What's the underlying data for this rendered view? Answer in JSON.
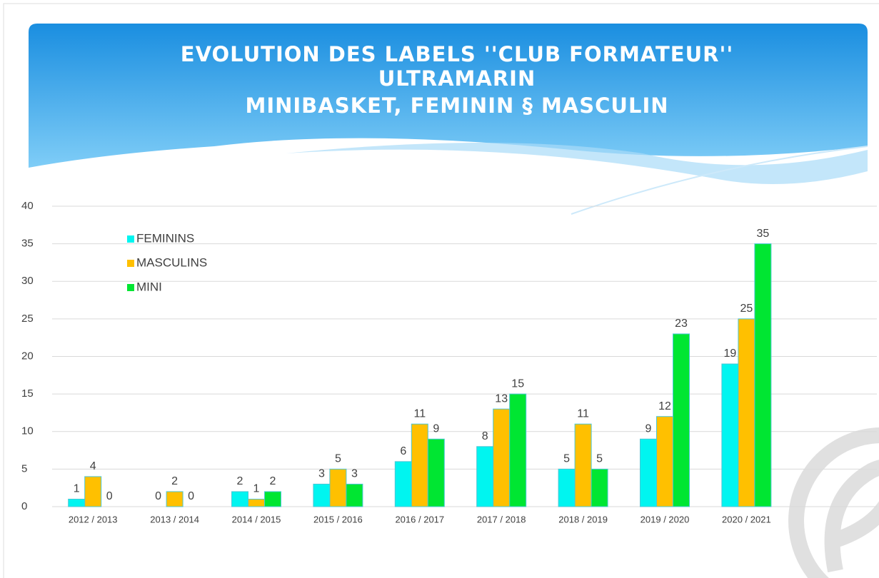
{
  "chart_data": {
    "type": "bar",
    "title": [
      "EVOLUTION DES LABELS ''CLUB FORMATEUR''",
      "ULTRAMARIN",
      "MINIBASKET, FEMININ § MASCULIN"
    ],
    "categories": [
      "2012 / 2013",
      "2013 / 2014",
      "2014 / 2015",
      "2015 / 2016",
      "2016 / 2017",
      "2017 / 2018",
      "2018 / 2019",
      "2019 / 2020",
      "2020 / 2021"
    ],
    "series": [
      {
        "name": "FEMININS",
        "color": "#00f5f0",
        "values": [
          1,
          0,
          2,
          3,
          6,
          8,
          5,
          9,
          19
        ]
      },
      {
        "name": "MASCULINS",
        "color": "#ffc000",
        "values": [
          4,
          2,
          1,
          5,
          11,
          13,
          11,
          12,
          25
        ]
      },
      {
        "name": "MINI",
        "color": "#00e632",
        "values": [
          0,
          0,
          2,
          3,
          9,
          15,
          5,
          23,
          35
        ]
      }
    ],
    "ylim": [
      0,
      40
    ],
    "yticks": [
      0,
      5,
      10,
      15,
      20,
      25,
      30,
      35,
      40
    ],
    "grid": true,
    "legend": "upper left"
  }
}
